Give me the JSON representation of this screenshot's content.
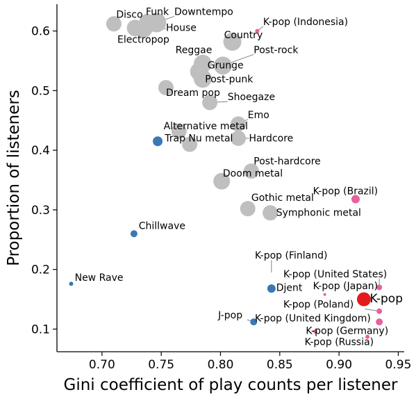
{
  "chart_data": {
    "type": "scatter",
    "title": "",
    "xlabel": "Gini coefficient of play counts per listener",
    "ylabel": "Proportion of listeners",
    "xlim": [
      0.662,
      0.955
    ],
    "ylim": [
      0.062,
      0.645
    ],
    "xticks": [
      0.7,
      0.75,
      0.8,
      0.85,
      0.9,
      0.95
    ],
    "xtick_labels": [
      "0.70",
      "0.75",
      "0.80",
      "0.85",
      "0.90",
      "0.95"
    ],
    "yticks": [
      0.1,
      0.2,
      0.3,
      0.4,
      0.5,
      0.6
    ],
    "ytick_labels": [
      "0.1",
      "0.2",
      "0.3",
      "0.4",
      "0.5",
      "0.6"
    ],
    "grid": false,
    "colors": {
      "gray": "#bfbfbf",
      "blue": "#3a78b4",
      "pink": "#e8609c",
      "red": "#e41a1c",
      "leader": "#808080"
    },
    "points": [
      {
        "label": "Disco",
        "x": 0.71,
        "y": 0.612,
        "size": 11,
        "color": "gray",
        "lx": 0.712,
        "ly": 0.622
      },
      {
        "label": "Funk",
        "x": 0.738,
        "y": 0.616,
        "size": 11,
        "color": "gray",
        "lx": 0.737,
        "ly": 0.627
      },
      {
        "label": "Downtempo",
        "x": 0.746,
        "y": 0.614,
        "size": 14,
        "color": "gray",
        "lx": 0.761,
        "ly": 0.627
      },
      {
        "label": "House",
        "x": 0.735,
        "y": 0.604,
        "size": 13,
        "color": "gray",
        "lx": 0.754,
        "ly": 0.6
      },
      {
        "label": "Electropop",
        "x": 0.728,
        "y": 0.605,
        "size": 12,
        "color": "gray",
        "lx": 0.713,
        "ly": 0.58
      },
      {
        "label": "Country",
        "x": 0.81,
        "y": 0.582,
        "size": 13,
        "color": "gray",
        "lx": 0.803,
        "ly": 0.588
      },
      {
        "label": "K-pop (Indonesia)",
        "x": 0.831,
        "y": 0.6,
        "size": 3,
        "color": "pink",
        "lx": 0.836,
        "ly": 0.61
      },
      {
        "label": "Reggae",
        "x": 0.785,
        "y": 0.545,
        "size": 13,
        "color": "gray",
        "lx": 0.762,
        "ly": 0.563
      },
      {
        "label": "Post-rock",
        "x": 0.802,
        "y": 0.542,
        "size": 13,
        "color": "gray",
        "lx": 0.828,
        "ly": 0.563
      },
      {
        "label": "Grunge",
        "x": 0.782,
        "y": 0.532,
        "size": 13,
        "color": "gray",
        "lx": 0.789,
        "ly": 0.537
      },
      {
        "label": "Post-punk",
        "x": 0.785,
        "y": 0.52,
        "size": 13,
        "color": "gray",
        "lx": 0.787,
        "ly": 0.514
      },
      {
        "label": "Dream pop",
        "x": 0.754,
        "y": 0.505,
        "size": 11,
        "color": "gray",
        "lx": 0.754,
        "ly": 0.491
      },
      {
        "label": "Shoegaze",
        "x": 0.791,
        "y": 0.48,
        "size": 11,
        "color": "gray",
        "lx": 0.806,
        "ly": 0.484
      },
      {
        "label": "Emo",
        "x": 0.815,
        "y": 0.444,
        "size": 11,
        "color": "gray",
        "lx": 0.823,
        "ly": 0.454
      },
      {
        "label": "Alternative metal",
        "x": 0.765,
        "y": 0.432,
        "size": 11,
        "color": "gray",
        "lx": 0.752,
        "ly": 0.435
      },
      {
        "label": "Trap",
        "x": 0.747,
        "y": 0.415,
        "size": 7,
        "color": "blue",
        "lx": 0.753,
        "ly": 0.415
      },
      {
        "label": "Nu metal",
        "x": 0.774,
        "y": 0.41,
        "size": 11,
        "color": "gray",
        "lx": 0.773,
        "ly": 0.415
      },
      {
        "label": "Hardcore",
        "x": 0.815,
        "y": 0.42,
        "size": 11,
        "color": "gray",
        "lx": 0.824,
        "ly": 0.415
      },
      {
        "label": "Post-hardcore",
        "x": 0.826,
        "y": 0.365,
        "size": 11,
        "color": "gray",
        "lx": 0.828,
        "ly": 0.376
      },
      {
        "label": "Doom metal",
        "x": 0.801,
        "y": 0.348,
        "size": 12,
        "color": "gray",
        "lx": 0.802,
        "ly": 0.356
      },
      {
        "label": "Gothic metal",
        "x": 0.823,
        "y": 0.302,
        "size": 11,
        "color": "gray",
        "lx": 0.826,
        "ly": 0.315
      },
      {
        "label": "Symphonic metal",
        "x": 0.842,
        "y": 0.295,
        "size": 11,
        "color": "gray",
        "lx": 0.847,
        "ly": 0.29
      },
      {
        "label": "K-pop (Brazil)",
        "x": 0.914,
        "y": 0.318,
        "size": 6,
        "color": "pink",
        "lx": 0.878,
        "ly": 0.326
      },
      {
        "label": "Chillwave",
        "x": 0.727,
        "y": 0.26,
        "size": 5,
        "color": "blue",
        "lx": 0.731,
        "ly": 0.268
      },
      {
        "label": "K-pop (Finland)",
        "x": 0.843,
        "y": 0.195,
        "size": 0,
        "color": "pink",
        "lx": 0.829,
        "ly": 0.218
      },
      {
        "label": "K-pop (United States)",
        "x": 0.934,
        "y": 0.17,
        "size": 4,
        "color": "pink",
        "lx": 0.853,
        "ly": 0.187
      },
      {
        "label": "New Rave",
        "x": 0.674,
        "y": 0.176,
        "size": 3,
        "color": "blue",
        "lx": 0.677,
        "ly": 0.181
      },
      {
        "label": "Djent",
        "x": 0.843,
        "y": 0.168,
        "size": 6,
        "color": "blue",
        "lx": 0.847,
        "ly": 0.164
      },
      {
        "label": "K-pop (Japan)",
        "x": 0.888,
        "y": 0.158,
        "size": 2,
        "color": "pink",
        "lx": 0.878,
        "ly": 0.167
      },
      {
        "label": "K-pop",
        "x": 0.921,
        "y": 0.15,
        "size": 10,
        "color": "red",
        "lx": 0.926,
        "ly": 0.145,
        "big": true
      },
      {
        "label": "K-pop (Poland)",
        "x": 0.934,
        "y": 0.13,
        "size": 4,
        "color": "pink",
        "lx": 0.853,
        "ly": 0.136
      },
      {
        "label": "J-pop",
        "x": 0.828,
        "y": 0.112,
        "size": 5,
        "color": "blue",
        "lx": 0.798,
        "ly": 0.118
      },
      {
        "label": "K-pop (United Kingdom)",
        "x": 0.934,
        "y": 0.112,
        "size": 5,
        "color": "pink",
        "lx": 0.829,
        "ly": 0.113
      },
      {
        "label": "K-pop (Germany)",
        "x": 0.88,
        "y": 0.096,
        "size": 3,
        "color": "pink",
        "lx": 0.872,
        "ly": 0.092
      },
      {
        "label": "K-pop (Russia)",
        "x": 0.924,
        "y": 0.087,
        "size": 3,
        "color": "pink",
        "lx": 0.871,
        "ly": 0.073
      }
    ]
  }
}
